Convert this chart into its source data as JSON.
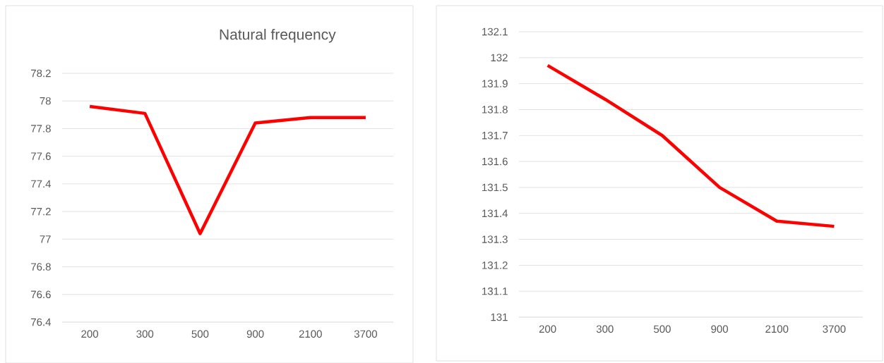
{
  "chart_data": [
    {
      "type": "line",
      "title": "Natural frequency",
      "categories": [
        "200",
        "300",
        "500",
        "900",
        "2100",
        "3700"
      ],
      "values": [
        77.96,
        77.91,
        77.04,
        77.84,
        77.88,
        77.88
      ],
      "color": "#ff0000",
      "ylim": [
        76.4,
        78.2
      ],
      "yticks": [
        76.4,
        76.6,
        76.8,
        77,
        77.2,
        77.4,
        77.6,
        77.8,
        78,
        78.2
      ],
      "grid": "y"
    },
    {
      "type": "line",
      "categories": [
        "200",
        "300",
        "500",
        "900",
        "2100",
        "3700"
      ],
      "values": [
        131.97,
        131.84,
        131.7,
        131.5,
        131.37,
        131.35
      ],
      "color": "#ff0000",
      "ylim": [
        131,
        132.1
      ],
      "yticks": [
        131,
        131.1,
        131.2,
        131.3,
        131.4,
        131.5,
        131.6,
        131.7,
        131.8,
        131.9,
        132,
        132.1
      ],
      "grid": "y"
    }
  ]
}
